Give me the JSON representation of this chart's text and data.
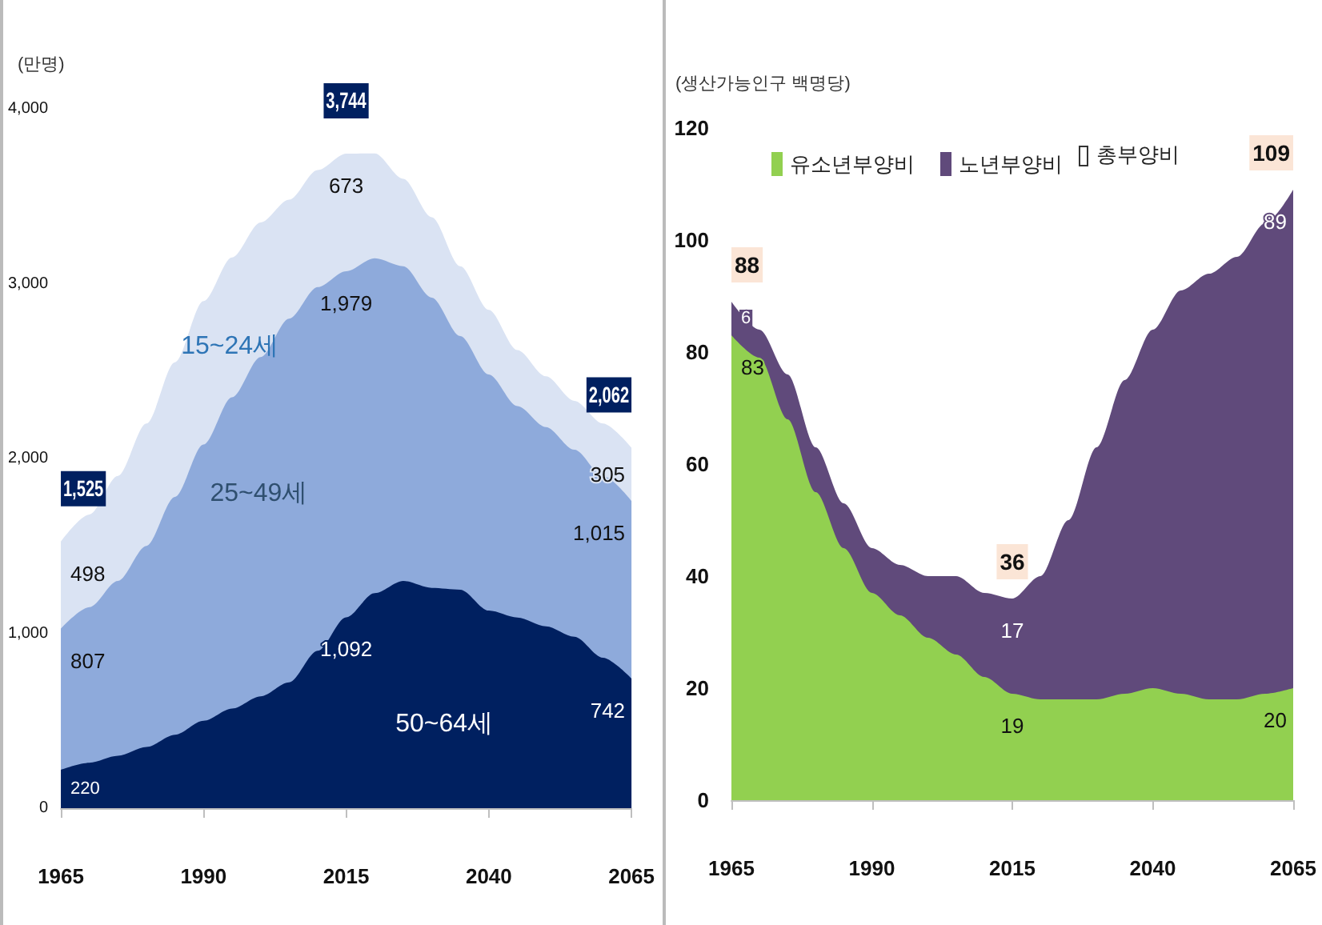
{
  "chart_data": [
    {
      "type": "area",
      "stacked": true,
      "ylabel": "(만명)",
      "legend": false,
      "grid": false,
      "marker": "none",
      "x": [
        1965,
        1970,
        1975,
        1980,
        1985,
        1990,
        1995,
        2000,
        2005,
        2010,
        2015,
        2020,
        2025,
        2030,
        2035,
        2040,
        2045,
        2050,
        2055,
        2060,
        2065
      ],
      "xlim": [
        1965,
        2065
      ],
      "xticks": [
        1965,
        1990,
        2015,
        2040,
        2065
      ],
      "ylim": [
        0,
        4000
      ],
      "yticks": [
        0,
        {
          "value": 1000,
          "label": "1,000"
        },
        {
          "value": 2000,
          "label": "2,000"
        },
        {
          "value": 3000,
          "label": "3,000"
        },
        {
          "value": 4000,
          "label": "4,000"
        }
      ],
      "series": [
        {
          "name": "50~64세",
          "color": "#002060",
          "values": [
            220,
            260,
            300,
            350,
            420,
            500,
            570,
            640,
            720,
            900,
            1092,
            1230,
            1300,
            1260,
            1250,
            1130,
            1090,
            1040,
            980,
            860,
            742
          ],
          "value_labels": [
            "220",
            null,
            null,
            null,
            null,
            null,
            null,
            null,
            null,
            null,
            "1,092",
            null,
            null,
            null,
            null,
            null,
            null,
            null,
            null,
            null,
            "742"
          ]
        },
        {
          "name": "25~49세",
          "color": "#8eaadb",
          "values": [
            807,
            890,
            1000,
            1150,
            1360,
            1580,
            1780,
            1940,
            2080,
            2080,
            1979,
            1915,
            1800,
            1660,
            1450,
            1350,
            1210,
            1140,
            1070,
            1040,
            1015
          ],
          "value_labels": [
            "807",
            null,
            null,
            null,
            null,
            null,
            null,
            null,
            null,
            null,
            "1,979",
            null,
            null,
            null,
            null,
            null,
            null,
            null,
            null,
            null,
            "1,015"
          ]
        },
        {
          "name": "15~24세",
          "color": "#dae3f3",
          "values": [
            498,
            530,
            600,
            700,
            770,
            820,
            800,
            770,
            680,
            670,
            673,
            600,
            500,
            460,
            400,
            370,
            320,
            290,
            280,
            300,
            305
          ],
          "value_labels": [
            "498",
            null,
            null,
            null,
            null,
            null,
            null,
            null,
            null,
            null,
            "673",
            null,
            null,
            null,
            null,
            null,
            null,
            null,
            null,
            null,
            "305"
          ]
        }
      ],
      "totals": [
        "1,525",
        null,
        null,
        null,
        null,
        null,
        null,
        null,
        null,
        null,
        "3,744",
        null,
        null,
        null,
        null,
        null,
        null,
        null,
        null,
        null,
        "2,062"
      ]
    },
    {
      "type": "area",
      "stacked": true,
      "ylabel": "(생산가능인구 백명당)",
      "legend": "top",
      "grid": false,
      "marker": "none",
      "x": [
        1965,
        1970,
        1975,
        1980,
        1985,
        1990,
        1995,
        2000,
        2005,
        2010,
        2015,
        2020,
        2025,
        2030,
        2035,
        2040,
        2045,
        2050,
        2055,
        2060,
        2065
      ],
      "xlim": [
        1965,
        2065
      ],
      "xticks": [
        1965,
        1990,
        2015,
        2040,
        2065
      ],
      "ylim": [
        0,
        120
      ],
      "yticks": [
        0,
        20,
        40,
        60,
        80,
        100,
        120
      ],
      "series": [
        {
          "name": "유소년부양비",
          "color": "#92d050",
          "values": [
            83,
            79,
            68,
            55,
            45,
            37,
            33,
            29,
            26,
            22,
            19,
            18,
            18,
            18,
            19,
            20,
            19,
            18,
            18,
            19,
            20
          ],
          "value_labels": [
            "83",
            null,
            null,
            null,
            null,
            null,
            null,
            null,
            null,
            null,
            "19",
            null,
            null,
            null,
            null,
            null,
            null,
            null,
            null,
            null,
            "20"
          ]
        },
        {
          "name": "노년부양비",
          "color": "#604a7b",
          "values": [
            6,
            5,
            8,
            8,
            8,
            8,
            9,
            11,
            14,
            15,
            17,
            22,
            32,
            45,
            56,
            64,
            72,
            76,
            79,
            84,
            89
          ],
          "value_labels": [
            "6",
            null,
            null,
            null,
            null,
            null,
            null,
            null,
            null,
            null,
            "17",
            null,
            null,
            null,
            null,
            null,
            null,
            null,
            null,
            null,
            "89"
          ]
        }
      ],
      "totals": [
        "88",
        null,
        null,
        null,
        null,
        null,
        null,
        null,
        null,
        null,
        "36",
        null,
        null,
        null,
        null,
        null,
        null,
        null,
        null,
        null,
        "109"
      ],
      "annotations": [
        "총부양비"
      ]
    }
  ]
}
